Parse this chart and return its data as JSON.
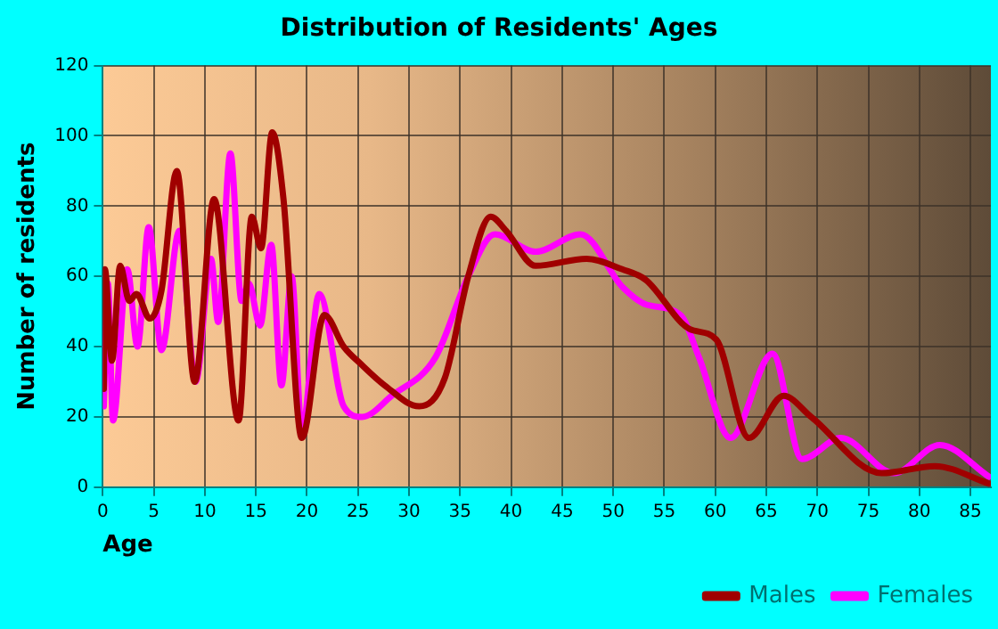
{
  "chart_data": {
    "type": "line",
    "title": "Distribution of Residents' Ages",
    "xlabel": "Age",
    "ylabel": "Number of residents",
    "xlim": [
      0,
      87
    ],
    "xticks": [
      0,
      5,
      10,
      15,
      20,
      25,
      30,
      35,
      40,
      45,
      50,
      55,
      60,
      65,
      70,
      75,
      80,
      85
    ],
    "ylim": [
      0,
      120
    ],
    "yticks": [
      0,
      20,
      40,
      60,
      80,
      100,
      120
    ],
    "grid": true,
    "legend": "bottom right",
    "marker": "none",
    "line_style": "solid",
    "series": [
      {
        "name": "Males",
        "color": "#a00000",
        "x": [
          0.1,
          0.2,
          0.9,
          1.7,
          2.6,
          3.3,
          4.6,
          5.75,
          7.25,
          9,
          10.9,
          13.3,
          14.6,
          15.5,
          16.6,
          17.7,
          19.5,
          21.7,
          23.6,
          25.3,
          27.6,
          31,
          33.5,
          35.8,
          38,
          39.5,
          42.4,
          47.4,
          50.9,
          53.2,
          57.5,
          60.1,
          63.3,
          66.7,
          69.4,
          76.3,
          81.5,
          86.8
        ],
        "values": [
          28,
          62,
          36,
          63,
          53,
          55,
          48,
          56,
          90,
          30,
          82,
          19,
          77,
          68,
          101,
          82,
          14,
          49,
          40,
          35,
          29,
          23,
          31,
          60,
          77,
          73,
          63,
          65,
          62,
          59,
          45,
          42,
          14,
          26,
          20,
          4,
          6,
          1
        ]
      },
      {
        "name": "Females",
        "color": "#ff00ff",
        "x": [
          0.1,
          0.5,
          1,
          2.4,
          3.4,
          4.5,
          5.75,
          7.5,
          9.1,
          10.6,
          11.3,
          12.5,
          13.6,
          14.3,
          15.4,
          16.5,
          17.5,
          18.5,
          19.5,
          21.2,
          23.6,
          25.4,
          28.3,
          32.6,
          35.8,
          38.4,
          42.4,
          46.8,
          50.9,
          53.2,
          56.6,
          58.4,
          61.5,
          65.6,
          68.5,
          72.3,
          77.5,
          82,
          86.8
        ],
        "values": [
          23,
          58,
          19,
          62,
          40,
          74,
          39,
          73,
          30,
          65,
          47,
          95,
          53,
          58,
          46,
          69,
          29,
          60,
          16,
          55,
          23,
          20,
          26,
          37,
          60,
          72,
          67,
          72,
          57,
          52,
          49,
          37,
          14,
          38,
          8,
          14,
          4,
          12,
          3
        ]
      }
    ]
  }
}
